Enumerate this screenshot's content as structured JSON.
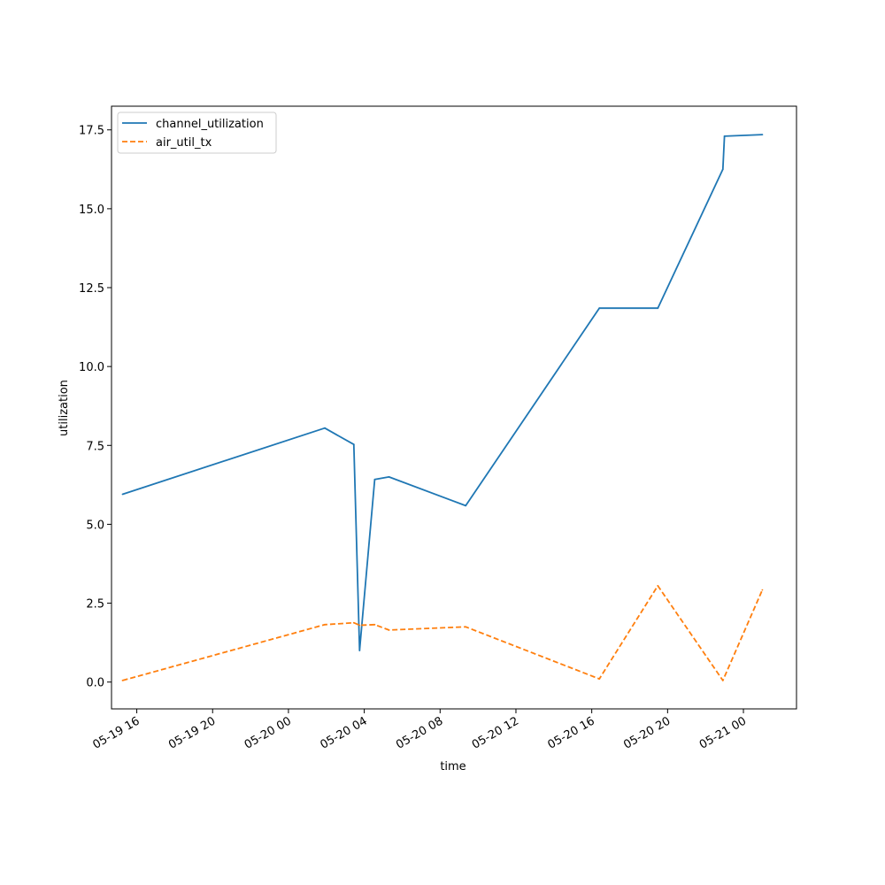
{
  "chart_data": {
    "type": "line",
    "xlabel": "time",
    "ylabel": "utilization",
    "x_ticks": [
      "05-19 16",
      "05-19 20",
      "05-20 00",
      "05-20 04",
      "05-20 08",
      "05-20 12",
      "05-20 16",
      "05-20 20",
      "05-21 00"
    ],
    "x_range": [
      "2024-05-19 14:40",
      "2024-05-21 02:48"
    ],
    "y_ticks": [
      "0.0",
      "2.5",
      "5.0",
      "7.5",
      "10.0",
      "12.5",
      "15.0",
      "17.5"
    ],
    "ylim": [
      -0.85,
      18.25
    ],
    "grid": false,
    "legend_position": "upper-left",
    "series": [
      {
        "name": "channel_utilization",
        "color": "#1f77b4",
        "style": "solid",
        "points": [
          [
            "2024-05-19 15:15",
            5.95
          ],
          [
            "2024-05-20 01:55",
            8.05
          ],
          [
            "2024-05-20 03:27",
            7.53
          ],
          [
            "2024-05-20 03:45",
            1.0
          ],
          [
            "2024-05-20 04:33",
            6.42
          ],
          [
            "2024-05-20 05:18",
            6.5
          ],
          [
            "2024-05-20 09:21",
            5.59
          ],
          [
            "2024-05-20 16:24",
            11.85
          ],
          [
            "2024-05-20 19:29",
            11.85
          ],
          [
            "2024-05-20 22:55",
            16.25
          ],
          [
            "2024-05-20 23:00",
            17.3
          ],
          [
            "2024-05-21 01:00",
            17.35
          ]
        ]
      },
      {
        "name": "air_util_tx",
        "color": "#ff7f0e",
        "style": "dashed",
        "points": [
          [
            "2024-05-19 15:15",
            0.05
          ],
          [
            "2024-05-20 01:55",
            1.82
          ],
          [
            "2024-05-20 03:27",
            1.88
          ],
          [
            "2024-05-20 03:45",
            1.8
          ],
          [
            "2024-05-20 04:33",
            1.82
          ],
          [
            "2024-05-20 05:18",
            1.65
          ],
          [
            "2024-05-20 09:21",
            1.75
          ],
          [
            "2024-05-20 16:24",
            0.1
          ],
          [
            "2024-05-20 19:29",
            3.05
          ],
          [
            "2024-05-20 22:55",
            0.05
          ],
          [
            "2024-05-21 01:00",
            2.92
          ]
        ]
      }
    ]
  }
}
